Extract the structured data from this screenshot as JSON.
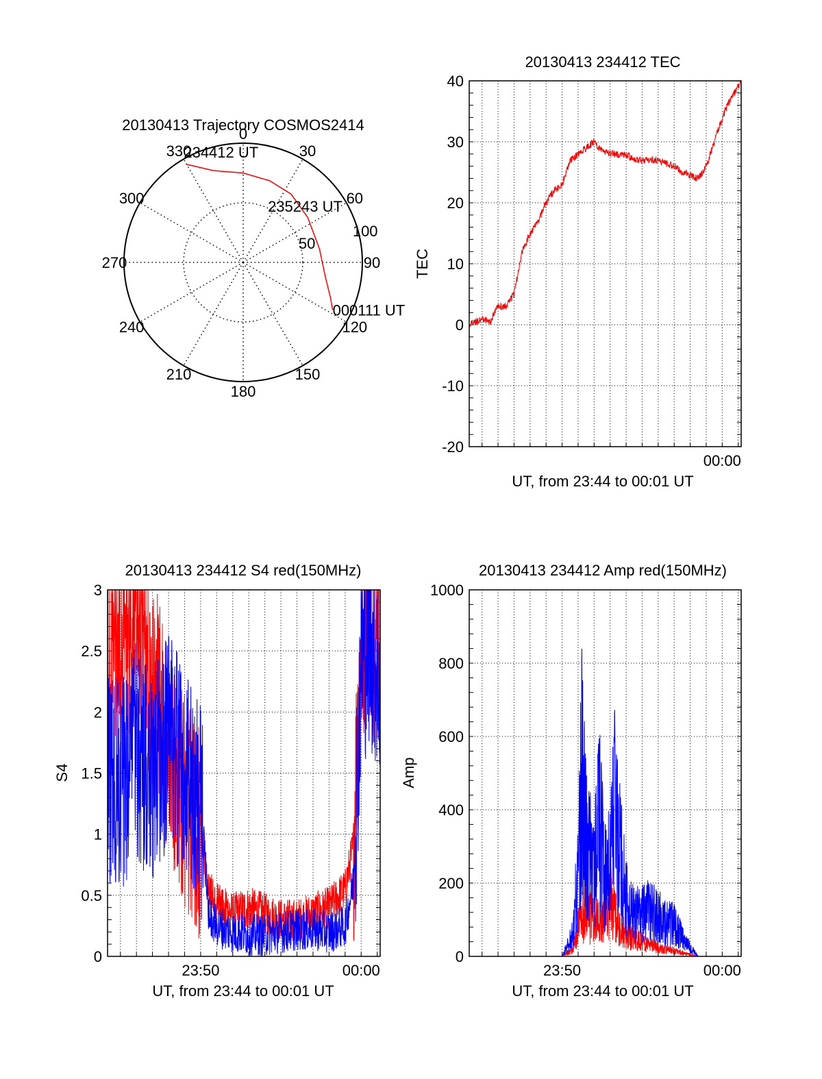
{
  "chart_data": [
    {
      "type": "polar",
      "title": "20130413 Trajectory COSMOS2414",
      "angle_labels": [
        "0",
        "30",
        "60",
        "90",
        "120",
        "150",
        "180",
        "210",
        "240",
        "270",
        "300",
        "330"
      ],
      "ring_labels": [
        "50",
        "100"
      ],
      "ring_values": [
        50,
        100
      ],
      "r_max": 100,
      "track": {
        "color": "#ff0000",
        "points": [
          {
            "az": 330,
            "r": 95
          },
          {
            "az": 342,
            "r": 81
          },
          {
            "az": 0,
            "r": 75
          },
          {
            "az": 18,
            "r": 72
          },
          {
            "az": 35,
            "r": 70
          },
          {
            "az": 55,
            "r": 66
          },
          {
            "az": 80,
            "r": 65
          },
          {
            "az": 100,
            "r": 70
          },
          {
            "az": 112,
            "r": 79
          },
          {
            "az": 118,
            "r": 85
          }
        ]
      },
      "annotations": [
        {
          "text": "234412 UT",
          "az": 330,
          "r": 95
        },
        {
          "text": "235243 UT",
          "az": 55,
          "r": 66
        },
        {
          "text": "000111 UT",
          "az": 118,
          "r": 85
        }
      ]
    },
    {
      "type": "line",
      "title": "20130413 234412 TEC",
      "xlabel": "UT, from 23:44 to 00:01 UT",
      "ylabel": "TEC",
      "x_range": [
        "23:44:12",
        "00:01:11"
      ],
      "xticks": [
        "00:00"
      ],
      "ylim": [
        -20,
        40
      ],
      "yticks": [
        -20,
        -10,
        0,
        10,
        20,
        30,
        40
      ],
      "grid": true,
      "series": [
        {
          "color": "#ff0000",
          "x": [
            "23:44:12",
            "23:45:00",
            "23:45:30",
            "23:46:00",
            "23:46:30",
            "23:47:00",
            "23:47:30",
            "23:48:00",
            "23:48:30",
            "23:49:00",
            "23:49:30",
            "23:50:00",
            "23:50:30",
            "23:51:00",
            "23:51:30",
            "23:52:00",
            "23:52:30",
            "23:53:00",
            "23:53:30",
            "23:54:00",
            "23:54:30",
            "23:55:00",
            "23:55:30",
            "23:56:00",
            "23:56:30",
            "23:57:00",
            "23:57:30",
            "23:58:00",
            "23:58:30",
            "23:59:00",
            "23:59:30",
            "00:00:00",
            "00:00:30",
            "00:01:11"
          ],
          "values": [
            0,
            1,
            0.5,
            3,
            3,
            5,
            12,
            15,
            17,
            20,
            22,
            23,
            27,
            28,
            29,
            30,
            28.5,
            28,
            28,
            28,
            27,
            27,
            27,
            27,
            26.5,
            26,
            25,
            24.5,
            24,
            26,
            30,
            34,
            37,
            40
          ]
        }
      ]
    },
    {
      "type": "line",
      "title": "20130413 234412 S4 red(150MHz)",
      "xlabel": "UT, from 23:44 to 00:01 UT",
      "ylabel": "S4",
      "x_range": [
        "23:44:12",
        "00:01:11"
      ],
      "xticks": [
        "23:50",
        "00:00"
      ],
      "ylim": [
        0,
        3
      ],
      "yticks": [
        "0",
        "0.5",
        "1",
        "1.5",
        "2",
        "2.5",
        "3"
      ],
      "grid": true,
      "series": [
        {
          "color": "#ff0000",
          "x": [
            "23:44:12",
            "23:45:00",
            "23:46:00",
            "23:47:00",
            "23:48:00",
            "23:49:00",
            "23:50:00",
            "23:50:30",
            "23:51:00",
            "23:52:00",
            "23:53:00",
            "23:54:00",
            "23:55:00",
            "23:56:00",
            "23:57:00",
            "23:58:00",
            "23:59:00",
            "23:59:30",
            "00:00:00",
            "00:00:30",
            "00:01:11"
          ],
          "values": [
            2.2,
            2.6,
            2.7,
            2.3,
            1.6,
            1.3,
            1.0,
            0.55,
            0.45,
            0.35,
            0.4,
            0.35,
            0.3,
            0.3,
            0.35,
            0.4,
            0.55,
            0.9,
            2.6,
            2.8,
            2.5
          ]
        },
        {
          "color": "#0000ff",
          "x": [
            "23:44:12",
            "23:45:00",
            "23:46:00",
            "23:47:00",
            "23:48:00",
            "23:49:00",
            "23:50:00",
            "23:50:30",
            "23:51:00",
            "23:52:00",
            "23:53:00",
            "23:54:00",
            "23:55:00",
            "23:56:00",
            "23:57:00",
            "23:58:00",
            "23:59:00",
            "23:59:30",
            "00:00:00",
            "00:00:30",
            "00:01:11"
          ],
          "values": [
            1.5,
            1.4,
            1.7,
            1.4,
            1.8,
            1.5,
            1.3,
            0.35,
            0.25,
            0.2,
            0.18,
            0.17,
            0.2,
            0.22,
            0.22,
            0.2,
            0.25,
            0.6,
            2.4,
            2.6,
            2.3
          ]
        }
      ]
    },
    {
      "type": "line",
      "title": "20130413 234412 Amp red(150MHz)",
      "xlabel": "UT, from 23:44 to 00:01 UT",
      "ylabel": "Amp",
      "x_range": [
        "23:44:12",
        "00:01:11"
      ],
      "xticks": [
        "23:50",
        "00:00"
      ],
      "ylim": [
        0,
        1000
      ],
      "yticks": [
        0,
        200,
        400,
        600,
        800,
        1000
      ],
      "grid": true,
      "series": [
        {
          "color": "#ff0000",
          "x": [
            "23:44:12",
            "23:50:00",
            "23:50:40",
            "23:51:00",
            "23:51:30",
            "23:52:00",
            "23:52:30",
            "23:53:00",
            "23:53:30",
            "23:54:00",
            "23:54:30",
            "23:55:00",
            "23:55:30",
            "23:56:00",
            "23:56:30",
            "23:57:00",
            "23:57:30",
            "23:58:00",
            "23:58:30",
            "00:01:11"
          ],
          "values": [
            0,
            0,
            20,
            80,
            120,
            90,
            110,
            150,
            80,
            60,
            50,
            40,
            30,
            25,
            20,
            15,
            10,
            5,
            0,
            0
          ]
        },
        {
          "color": "#0000ff",
          "x": [
            "23:44:12",
            "23:50:00",
            "23:50:40",
            "23:51:00",
            "23:51:15",
            "23:51:30",
            "23:52:00",
            "23:52:20",
            "23:52:40",
            "23:53:00",
            "23:53:20",
            "23:53:40",
            "23:54:00",
            "23:54:30",
            "23:55:00",
            "23:55:30",
            "23:56:00",
            "23:56:30",
            "23:57:00",
            "23:57:30",
            "23:58:00",
            "23:58:30",
            "00:01:11"
          ],
          "values": [
            0,
            0,
            60,
            250,
            530,
            300,
            240,
            380,
            210,
            250,
            440,
            270,
            160,
            110,
            120,
            130,
            110,
            90,
            90,
            50,
            25,
            0,
            0
          ]
        }
      ]
    }
  ]
}
